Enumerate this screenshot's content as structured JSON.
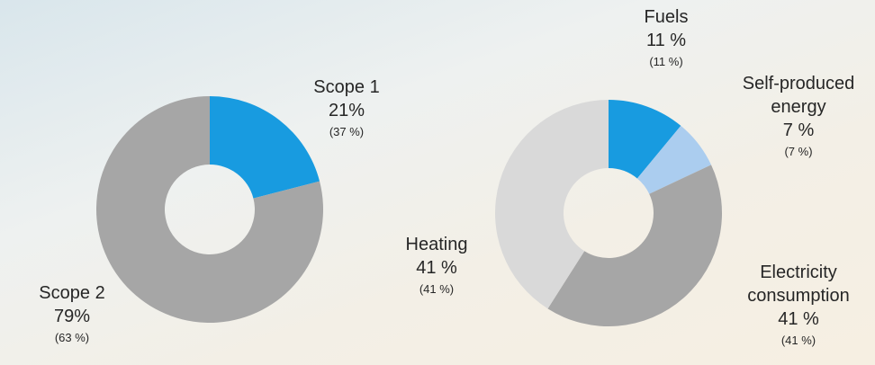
{
  "chart_data": [
    {
      "type": "donut",
      "categories": [
        "Scope 1",
        "Scope 2"
      ],
      "values": [
        21,
        79
      ],
      "value_labels": [
        "21%",
        "79%"
      ],
      "comparison_labels": [
        "(37 %)",
        "(63 %)"
      ],
      "colors": [
        "#189be0",
        "#a6a6a6"
      ]
    },
    {
      "type": "donut",
      "categories": [
        "Fuels",
        "Self-produced energy",
        "Electricity consumption",
        "Heating"
      ],
      "values": [
        11,
        7,
        41,
        41
      ],
      "value_labels": [
        "11 %",
        "7 %",
        "41 %",
        "41 %"
      ],
      "comparison_labels": [
        "(11 %)",
        "(7 %)",
        "(41 %)",
        "(41 %)"
      ],
      "colors": [
        "#189be0",
        "#abcdef",
        "#a6a6a6",
        "#d9d9d9"
      ]
    }
  ]
}
